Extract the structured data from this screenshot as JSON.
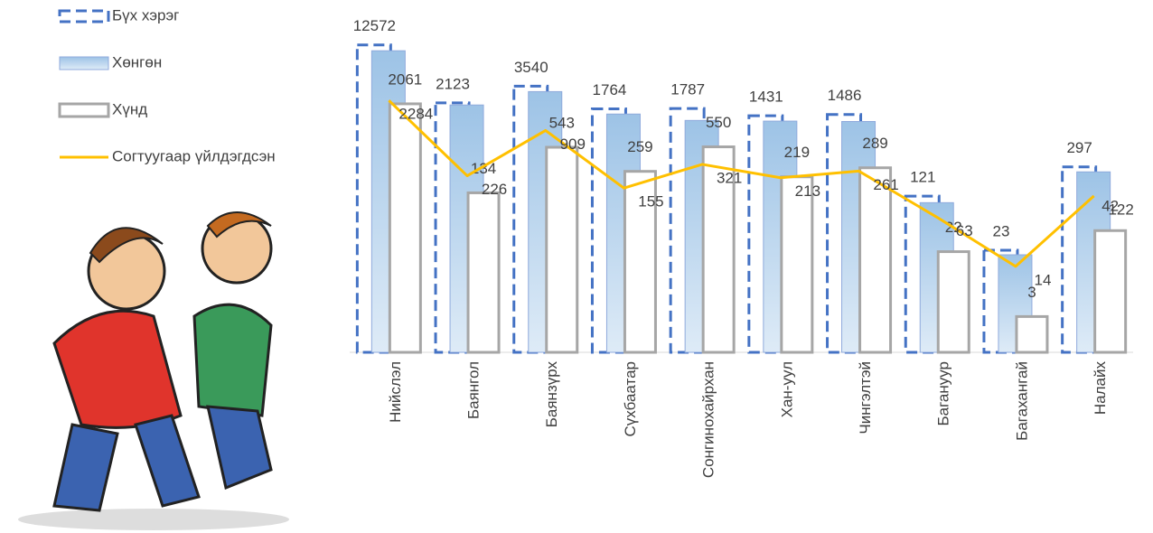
{
  "chart_data": {
    "type": "bar",
    "log_scale": true,
    "ylim": [
      1,
      20000
    ],
    "categories": [
      "Нийслэл",
      "Баянгол",
      "Баянзүрх",
      "Сүхбаатар",
      "Сонгинохайрхан",
      "Хан-уул",
      "Чингэлтэй",
      "Багануур",
      "Багахангай",
      "Налайх"
    ],
    "series": [
      {
        "name": "Бүх хэрэг",
        "color": "#4472c4",
        "style": "dashed",
        "values": [
          12572,
          2123,
          3540,
          1764,
          1787,
          1431,
          1486,
          121,
          23,
          297
        ]
      },
      {
        "name": "Хөнгөн",
        "color": "#9dc3e6",
        "style": "filled",
        "values": [
          10511,
          1989,
          2997,
          1505,
          1237,
          1212,
          1197,
          99,
          20,
          255
        ]
      },
      {
        "name": "Хүнд",
        "color": "#a6a6a6",
        "style": "outline",
        "values": [
          2061,
          134,
          543,
          259,
          550,
          219,
          289,
          22,
          3,
          42
        ]
      },
      {
        "name": "Согтуугаар үйлдэгдсэн",
        "color": "#ffc000",
        "type": "line",
        "values": [
          2284,
          226,
          909,
          155,
          321,
          213,
          261,
          63,
          14,
          122
        ]
      }
    ]
  }
}
